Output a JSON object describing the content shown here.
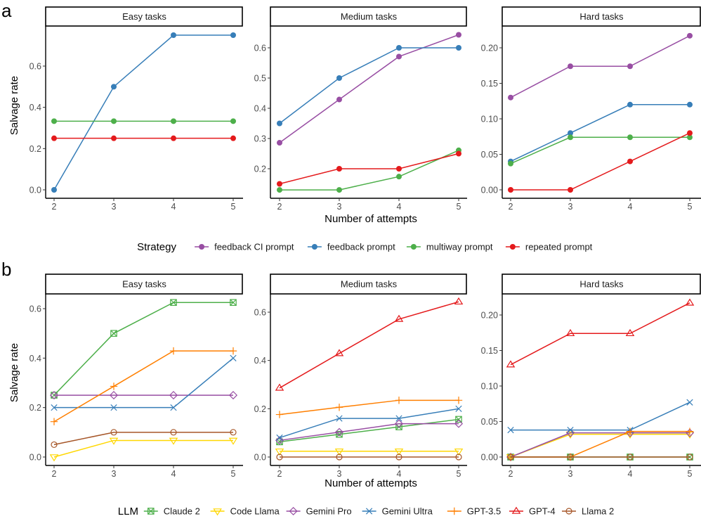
{
  "figure": {
    "panel_a_letter": "a",
    "panel_b_letter": "b",
    "x_label": "Number of attempts",
    "y_label": "Salvage rate"
  },
  "chart_data": [
    {
      "type": "line",
      "panel": "a",
      "facets": [
        "Easy tasks",
        "Medium tasks",
        "Hard tasks"
      ],
      "xlabel": "Number of attempts",
      "ylabel": "Salvage rate",
      "x": [
        2,
        3,
        4,
        5
      ],
      "legend_title": "Strategy",
      "legend_position": "bottom",
      "grid": false,
      "facet_scales": [
        {
          "facet": "Easy tasks",
          "ylim": [
            -0.03,
            0.78
          ],
          "yticks": [
            0.0,
            0.2,
            0.4,
            0.6
          ],
          "tick_labels": [
            "0.0",
            "0.2",
            "0.4",
            "0.6"
          ]
        },
        {
          "facet": "Medium tasks",
          "ylim": [
            0.11,
            0.665
          ],
          "yticks": [
            0.2,
            0.3,
            0.4,
            0.5,
            0.6
          ],
          "tick_labels": [
            "0.2",
            "0.3",
            "0.4",
            "0.5",
            "0.6"
          ]
        },
        {
          "facet": "Hard tasks",
          "ylim": [
            -0.011,
            0.228
          ],
          "yticks": [
            0.0,
            0.05,
            0.1,
            0.15,
            0.2
          ],
          "tick_labels": [
            "0.00",
            "0.05",
            "0.10",
            "0.15",
            "0.20"
          ]
        }
      ],
      "series": [
        {
          "name": "feedback CI prompt",
          "color": "#984ea3",
          "marker": "circle",
          "values": {
            "Easy tasks": null,
            "Medium tasks": [
              0.286,
              0.429,
              0.571,
              0.643
            ],
            "Hard tasks": [
              0.13,
              0.174,
              0.174,
              0.217
            ]
          }
        },
        {
          "name": "feedback prompt",
          "color": "#377eb8",
          "marker": "circle",
          "values": {
            "Easy tasks": [
              0.0,
              0.5,
              0.75,
              0.75
            ],
            "Medium tasks": [
              0.35,
              0.5,
              0.6,
              0.6
            ],
            "Hard tasks": [
              0.04,
              0.08,
              0.12,
              0.12
            ]
          }
        },
        {
          "name": "multiway prompt",
          "color": "#4daf4a",
          "marker": "circle",
          "values": {
            "Easy tasks": [
              0.333,
              0.333,
              0.333,
              0.333
            ],
            "Medium tasks": [
              0.13,
              0.13,
              0.174,
              0.261
            ],
            "Hard tasks": [
              0.037,
              0.074,
              0.074,
              0.074
            ]
          }
        },
        {
          "name": "repeated prompt",
          "color": "#e41a1c",
          "marker": "circle",
          "values": {
            "Easy tasks": [
              0.25,
              0.25,
              0.25,
              0.25
            ],
            "Medium tasks": [
              0.15,
              0.2,
              0.2,
              0.25
            ],
            "Hard tasks": [
              0.0,
              0.0,
              0.04,
              0.08
            ]
          }
        }
      ]
    },
    {
      "type": "line",
      "panel": "b",
      "facets": [
        "Easy tasks",
        "Medium tasks",
        "Hard tasks"
      ],
      "xlabel": "Number of attempts",
      "ylabel": "Salvage rate",
      "x": [
        2,
        3,
        4,
        5
      ],
      "legend_title": "LLM",
      "legend_position": "bottom",
      "grid": false,
      "facet_scales": [
        {
          "facet": "Easy tasks",
          "ylim": [
            -0.03,
            0.66
          ],
          "yticks": [
            0.0,
            0.2,
            0.4,
            0.6
          ],
          "tick_labels": [
            "0.0",
            "0.2",
            "0.4",
            "0.6"
          ]
        },
        {
          "facet": "Medium tasks",
          "ylim": [
            -0.03,
            0.66
          ],
          "yticks": [
            0.0,
            0.2,
            0.4,
            0.6
          ],
          "tick_labels": [
            "0.0",
            "0.2",
            "0.4",
            "0.6"
          ]
        },
        {
          "facet": "Hard tasks",
          "ylim": [
            -0.011,
            0.228
          ],
          "yticks": [
            0.0,
            0.05,
            0.1,
            0.15,
            0.2
          ],
          "tick_labels": [
            "0.00",
            "0.05",
            "0.10",
            "0.15",
            "0.20"
          ]
        }
      ],
      "series": [
        {
          "name": "Claude 2",
          "color": "#4daf4a",
          "marker": "square-cross",
          "values": {
            "Easy tasks": [
              0.25,
              0.5,
              0.625,
              0.625
            ],
            "Medium tasks": [
              0.063,
              0.094,
              0.125,
              0.156
            ],
            "Hard tasks": [
              0.0,
              0.0,
              0.0,
              0.0
            ]
          }
        },
        {
          "name": "Code Llama",
          "color": "#ffd700",
          "marker": "triangle-down",
          "values": {
            "Easy tasks": [
              0.0,
              0.067,
              0.067,
              0.067
            ],
            "Medium tasks": [
              0.024,
              0.024,
              0.024,
              0.024
            ],
            "Hard tasks": [
              0.0,
              0.032,
              0.032,
              0.032
            ]
          }
        },
        {
          "name": "Gemini Pro",
          "color": "#984ea3",
          "marker": "diamond",
          "values": {
            "Easy tasks": [
              0.25,
              0.25,
              0.25,
              0.25
            ],
            "Medium tasks": [
              0.069,
              0.103,
              0.138,
              0.138
            ],
            "Hard tasks": [
              0.0,
              0.034,
              0.034,
              0.034
            ]
          }
        },
        {
          "name": "Gemini Ultra",
          "color": "#377eb8",
          "marker": "x",
          "values": {
            "Easy tasks": [
              0.2,
              0.2,
              0.2,
              0.4
            ],
            "Medium tasks": [
              0.08,
              0.16,
              0.16,
              0.2
            ],
            "Hard tasks": [
              0.038,
              0.038,
              0.038,
              0.077
            ]
          }
        },
        {
          "name": "GPT-3.5",
          "color": "#ff7f00",
          "marker": "plus",
          "values": {
            "Easy tasks": [
              0.143,
              0.286,
              0.429,
              0.429
            ],
            "Medium tasks": [
              0.176,
              0.206,
              0.235,
              0.235
            ],
            "Hard tasks": [
              0.0,
              0.0,
              0.036,
              0.036
            ]
          }
        },
        {
          "name": "GPT-4",
          "color": "#e41a1c",
          "marker": "triangle-up",
          "values": {
            "Easy tasks": null,
            "Medium tasks": [
              0.286,
              0.429,
              0.571,
              0.643
            ],
            "Hard tasks": [
              0.13,
              0.174,
              0.174,
              0.217
            ]
          }
        },
        {
          "name": "Llama 2",
          "color": "#a65628",
          "marker": "circle-open",
          "values": {
            "Easy tasks": [
              0.05,
              0.1,
              0.1,
              0.1
            ],
            "Medium tasks": [
              0.0,
              0.0,
              0.0,
              0.0
            ],
            "Hard tasks": [
              0.0,
              0.0,
              0.0,
              0.0
            ]
          }
        }
      ]
    }
  ]
}
